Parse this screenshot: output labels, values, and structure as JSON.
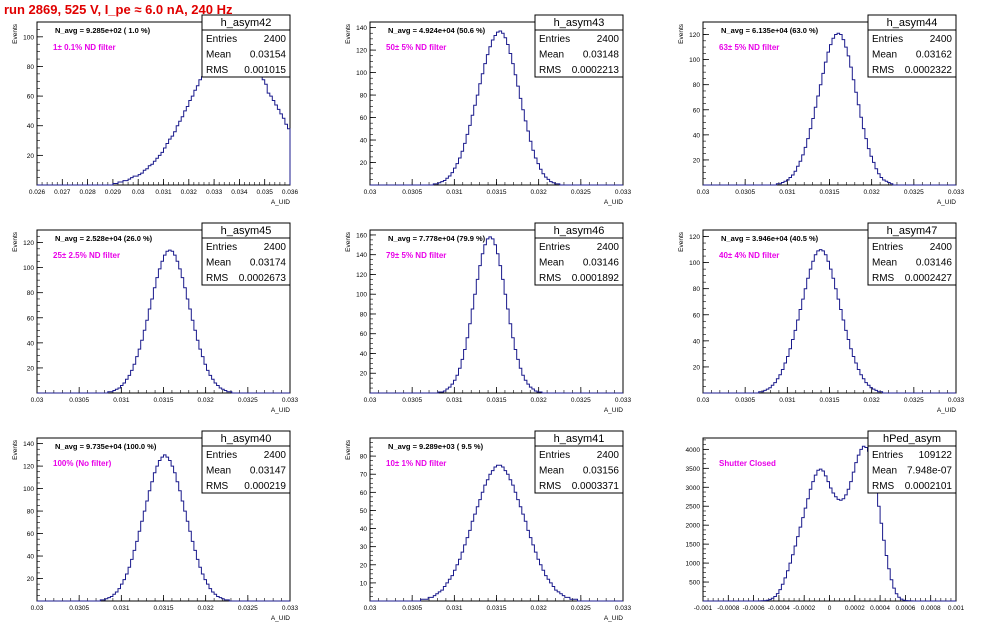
{
  "run_title": "run 2869,   525 V, I_pe ≈ 6.0 nA, 240 Hz",
  "colors": {
    "histogram": "#1a1a8c",
    "annotation": "#e800e8",
    "title": "#e00000",
    "axis": "#000000"
  },
  "chart_data": [
    {
      "type": "histogram",
      "name": "h_asym42",
      "navg": "N_avg = 9.285e+02 ( 1.0 %)",
      "filter": "1± 0.1% ND filter",
      "stats": {
        "Entries": "2400",
        "Mean": "0.03154",
        "RMS": "0.001015"
      },
      "ylabel": "Events",
      "xlabel": "A_UID",
      "xlim": [
        0.026,
        0.036
      ],
      "ylim": [
        0,
        110
      ],
      "xticks": [
        "0.026",
        "0.027",
        "0.028",
        "0.029",
        "0.03",
        "0.031",
        "0.032",
        "0.033",
        "0.034",
        "0.035",
        "0.036"
      ],
      "yticks": [
        "20",
        "40",
        "60",
        "80",
        "100"
      ],
      "x_start": 0.026,
      "bin_width": 0.0001,
      "counts": [
        0,
        0,
        0,
        0,
        0,
        0,
        0,
        0,
        0,
        0,
        0,
        0,
        0,
        0,
        0,
        0,
        0,
        0,
        0,
        0,
        0,
        0,
        0,
        0,
        0,
        0,
        0,
        0,
        0,
        0,
        1,
        1,
        2,
        2,
        3,
        3,
        4,
        5,
        6,
        6,
        7,
        8,
        10,
        11,
        13,
        14,
        16,
        18,
        20,
        22,
        25,
        28,
        31,
        33,
        36,
        40,
        43,
        46,
        50,
        53,
        57,
        60,
        64,
        67,
        71,
        73,
        79,
        82,
        88,
        92,
        95,
        96,
        100,
        99,
        100,
        103,
        96,
        99,
        97,
        92,
        95,
        93,
        88,
        92,
        87,
        81,
        78,
        75,
        73,
        71,
        68,
        62,
        60,
        57,
        54,
        51,
        48,
        45,
        41,
        38,
        35,
        32,
        29,
        27,
        24,
        21,
        20,
        18,
        16,
        14,
        12,
        10,
        9,
        8,
        7,
        5,
        5,
        4,
        3,
        3,
        2,
        2,
        1,
        1,
        1,
        1,
        0,
        0,
        0,
        0,
        0,
        0,
        0,
        0,
        0,
        0,
        0,
        0,
        0,
        0,
        0,
        0,
        0,
        0,
        0,
        0,
        0,
        0,
        0,
        0,
        0,
        0,
        0,
        0,
        0,
        0,
        0,
        0,
        0,
        0,
        0,
        0,
        0,
        0,
        0,
        0,
        0,
        0
      ]
    },
    {
      "type": "histogram",
      "name": "h_asym43",
      "navg": "N_avg = 4.924e+04 (50.6 %)",
      "filter": "50± 5% ND filter",
      "stats": {
        "Entries": "2400",
        "Mean": "0.03148",
        "RMS": "0.0002213"
      },
      "ylabel": "Events",
      "xlabel": "A_UID",
      "xlim": [
        0.03,
        0.033
      ],
      "ylim": [
        0,
        145
      ],
      "xticks": [
        "0.03",
        "0.0305",
        "0.031",
        "0.0315",
        "0.032",
        "0.0325",
        "0.033"
      ],
      "yticks": [
        "20",
        "40",
        "60",
        "80",
        "100",
        "120",
        "140"
      ],
      "x_start": 0.03,
      "bin_width": 3e-05,
      "counts": [
        0,
        0,
        0,
        0,
        0,
        0,
        0,
        0,
        0,
        0,
        0,
        0,
        0,
        0,
        0,
        0,
        0,
        0,
        0,
        0,
        0,
        0,
        0,
        0,
        0,
        1,
        1,
        2,
        3,
        4,
        6,
        8,
        11,
        15,
        19,
        24,
        30,
        37,
        45,
        53,
        62,
        71,
        80,
        90,
        99,
        108,
        116,
        123,
        129,
        133,
        136,
        137,
        135,
        131,
        125,
        117,
        108,
        98,
        88,
        77,
        67,
        57,
        48,
        39,
        31,
        24,
        19,
        14,
        10,
        7,
        5,
        3,
        2,
        1,
        1,
        0,
        0,
        0,
        0,
        0,
        0,
        0,
        0,
        0,
        0,
        0,
        0,
        0,
        0,
        0,
        0,
        0,
        0,
        0,
        0,
        0,
        0,
        0,
        0,
        0
      ]
    },
    {
      "type": "histogram",
      "name": "h_asym44",
      "navg": "N_avg = 6.135e+04 (63.0 %)",
      "filter": "63± 5% ND filter",
      "stats": {
        "Entries": "2400",
        "Mean": "0.03162",
        "RMS": "0.0002322"
      },
      "ylabel": "Events",
      "xlabel": "A_UID",
      "xlim": [
        0.03,
        0.033
      ],
      "ylim": [
        0,
        130
      ],
      "xticks": [
        "0.03",
        "0.0305",
        "0.031",
        "0.0315",
        "0.032",
        "0.0325",
        "0.033"
      ],
      "yticks": [
        "20",
        "40",
        "60",
        "80",
        "100",
        "120"
      ],
      "x_start": 0.03,
      "bin_width": 3e-05,
      "counts": [
        0,
        0,
        0,
        0,
        0,
        0,
        0,
        0,
        0,
        0,
        0,
        0,
        0,
        0,
        0,
        0,
        0,
        0,
        0,
        0,
        0,
        0,
        0,
        0,
        0,
        0,
        0,
        0,
        0,
        1,
        1,
        2,
        3,
        4,
        6,
        8,
        11,
        15,
        19,
        24,
        30,
        37,
        45,
        53,
        62,
        71,
        80,
        89,
        98,
        106,
        112,
        117,
        120,
        121,
        120,
        116,
        110,
        103,
        94,
        84,
        74,
        64,
        54,
        45,
        37,
        29,
        23,
        18,
        13,
        9,
        6,
        4,
        3,
        2,
        1,
        0,
        0,
        0,
        0,
        0,
        0,
        0,
        0,
        0,
        0,
        0,
        0,
        0,
        0,
        0,
        0,
        0,
        0,
        0,
        0,
        0,
        0,
        0,
        0,
        0
      ]
    },
    {
      "type": "histogram",
      "name": "h_asym45",
      "navg": "N_avg = 2.528e+04 (26.0 %)",
      "filter": "25± 2.5% ND filter",
      "stats": {
        "Entries": "2400",
        "Mean": "0.03174",
        "RMS": "0.0002673"
      },
      "ylabel": "Events",
      "xlabel": "A_UID",
      "xlim": [
        0.03,
        0.033
      ],
      "ylim": [
        0,
        130
      ],
      "xticks": [
        "0.03",
        "0.0305",
        "0.031",
        "0.0315",
        "0.032",
        "0.0325",
        "0.033"
      ],
      "yticks": [
        "20",
        "40",
        "60",
        "80",
        "100",
        "120"
      ],
      "x_start": 0.03,
      "bin_width": 3e-05,
      "counts": [
        0,
        0,
        0,
        0,
        0,
        0,
        0,
        0,
        0,
        0,
        0,
        0,
        0,
        0,
        0,
        0,
        0,
        0,
        0,
        0,
        0,
        0,
        0,
        0,
        0,
        0,
        0,
        0,
        1,
        1,
        2,
        3,
        4,
        6,
        8,
        11,
        14,
        18,
        23,
        29,
        35,
        42,
        50,
        58,
        67,
        75,
        84,
        92,
        99,
        105,
        110,
        113,
        114,
        113,
        110,
        105,
        99,
        92,
        84,
        75,
        67,
        58,
        50,
        42,
        35,
        29,
        23,
        18,
        14,
        11,
        8,
        6,
        4,
        3,
        2,
        1,
        1,
        0,
        0,
        0,
        0,
        0,
        0,
        0,
        0,
        0,
        0,
        0,
        0,
        0,
        0,
        0,
        0,
        0,
        0,
        0,
        0,
        0,
        0,
        0
      ]
    },
    {
      "type": "histogram",
      "name": "h_asym46",
      "navg": "N_avg = 7.778e+04 (79.9 %)",
      "filter": "79± 5% ND filter",
      "stats": {
        "Entries": "2400",
        "Mean": "0.03146",
        "RMS": "0.0001892"
      },
      "ylabel": "Events",
      "xlabel": "A_UID",
      "xlim": [
        0.03,
        0.033
      ],
      "ylim": [
        0,
        165
      ],
      "xticks": [
        "0.03",
        "0.0305",
        "0.031",
        "0.0315",
        "0.032",
        "0.0325",
        "0.033"
      ],
      "yticks": [
        "20",
        "40",
        "60",
        "80",
        "100",
        "120",
        "140",
        "160"
      ],
      "x_start": 0.03,
      "bin_width": 3e-05,
      "counts": [
        0,
        0,
        0,
        0,
        0,
        0,
        0,
        0,
        0,
        0,
        0,
        0,
        0,
        0,
        0,
        0,
        0,
        0,
        0,
        0,
        0,
        0,
        0,
        0,
        0,
        0,
        0,
        1,
        1,
        2,
        4,
        6,
        9,
        13,
        18,
        25,
        34,
        44,
        56,
        70,
        85,
        100,
        115,
        129,
        141,
        150,
        156,
        158,
        156,
        150,
        141,
        129,
        115,
        100,
        85,
        70,
        56,
        44,
        34,
        25,
        18,
        13,
        9,
        6,
        4,
        2,
        1,
        1,
        0,
        0,
        0,
        0,
        0,
        0,
        0,
        0,
        0,
        0,
        0,
        0,
        0,
        0,
        0,
        0,
        0,
        0,
        0,
        0,
        0,
        0,
        0,
        0,
        0,
        0,
        0,
        0,
        0,
        0,
        0,
        0
      ]
    },
    {
      "type": "histogram",
      "name": "h_asym47",
      "navg": "N_avg = 3.946e+04 (40.5 %)",
      "filter": "40± 4% ND filter",
      "stats": {
        "Entries": "2400",
        "Mean": "0.03146",
        "RMS": "0.0002427"
      },
      "ylabel": "Events",
      "xlabel": "A_UID",
      "xlim": [
        0.03,
        0.033
      ],
      "ylim": [
        0,
        125
      ],
      "xticks": [
        "0.03",
        "0.0305",
        "0.031",
        "0.0315",
        "0.032",
        "0.0325",
        "0.033"
      ],
      "yticks": [
        "20",
        "40",
        "60",
        "80",
        "100",
        "120"
      ],
      "x_start": 0.03,
      "bin_width": 3e-05,
      "counts": [
        0,
        0,
        0,
        0,
        0,
        0,
        0,
        0,
        0,
        0,
        0,
        0,
        0,
        0,
        0,
        0,
        0,
        0,
        0,
        0,
        0,
        0,
        1,
        1,
        2,
        3,
        4,
        6,
        8,
        11,
        14,
        18,
        23,
        28,
        34,
        41,
        48,
        56,
        64,
        72,
        80,
        88,
        95,
        101,
        106,
        109,
        110,
        109,
        106,
        101,
        95,
        88,
        80,
        72,
        64,
        56,
        48,
        41,
        34,
        28,
        23,
        18,
        14,
        11,
        8,
        6,
        4,
        3,
        2,
        1,
        1,
        0,
        0,
        0,
        0,
        0,
        0,
        0,
        0,
        0,
        0,
        0,
        0,
        0,
        0,
        0,
        0,
        0,
        0,
        0,
        0,
        0,
        0,
        0,
        0,
        0,
        0,
        0,
        0,
        0
      ]
    },
    {
      "type": "histogram",
      "name": "h_asym40",
      "navg": "N_avg = 9.735e+04 (100.0 %)",
      "filter": "100% (No filter)",
      "stats": {
        "Entries": "2400",
        "Mean": "0.03147",
        "RMS": "0.000219"
      },
      "ylabel": "Events",
      "xlabel": "A_UID",
      "xlim": [
        0.03,
        0.033
      ],
      "ylim": [
        0,
        145
      ],
      "xticks": [
        "0.03",
        "0.0305",
        "0.031",
        "0.0315",
        "0.032",
        "0.0325",
        "0.033"
      ],
      "yticks": [
        "20",
        "40",
        "60",
        "80",
        "100",
        "120",
        "140"
      ],
      "x_start": 0.03,
      "bin_width": 3e-05,
      "counts": [
        0,
        0,
        0,
        0,
        0,
        0,
        0,
        0,
        0,
        0,
        0,
        0,
        0,
        0,
        0,
        0,
        0,
        0,
        0,
        0,
        0,
        0,
        0,
        0,
        0,
        1,
        1,
        2,
        3,
        4,
        6,
        8,
        11,
        15,
        19,
        24,
        30,
        37,
        45,
        53,
        62,
        71,
        80,
        89,
        98,
        106,
        114,
        120,
        125,
        128,
        130,
        128,
        125,
        120,
        114,
        106,
        98,
        89,
        80,
        71,
        62,
        53,
        45,
        37,
        30,
        24,
        19,
        15,
        11,
        8,
        6,
        4,
        3,
        2,
        1,
        1,
        0,
        0,
        0,
        0,
        0,
        0,
        0,
        0,
        0,
        0,
        0,
        0,
        0,
        0,
        0,
        0,
        0,
        0,
        0,
        0,
        0,
        0,
        0,
        0
      ]
    },
    {
      "type": "histogram",
      "name": "h_asym41",
      "navg": "N_avg = 9.289e+03 ( 9.5 %)",
      "filter": "10± 1% ND filter",
      "stats": {
        "Entries": "2400",
        "Mean": "0.03156",
        "RMS": "0.0003371"
      },
      "ylabel": "Events",
      "xlabel": "A_UID",
      "xlim": [
        0.03,
        0.033
      ],
      "ylim": [
        0,
        90
      ],
      "xticks": [
        "0.03",
        "0.0305",
        "0.031",
        "0.0315",
        "0.032",
        "0.0325",
        "0.033"
      ],
      "yticks": [
        "10",
        "20",
        "30",
        "40",
        "50",
        "60",
        "70",
        "80"
      ],
      "x_start": 0.03,
      "bin_width": 3e-05,
      "counts": [
        0,
        0,
        0,
        0,
        0,
        0,
        0,
        0,
        0,
        0,
        0,
        0,
        0,
        0,
        0,
        0,
        0,
        0,
        0,
        0,
        1,
        1,
        1,
        2,
        2,
        3,
        4,
        5,
        6,
        8,
        10,
        12,
        14,
        17,
        20,
        23,
        27,
        31,
        35,
        39,
        44,
        48,
        52,
        56,
        60,
        64,
        67,
        70,
        72,
        74,
        75,
        75,
        74,
        72,
        70,
        67,
        64,
        60,
        56,
        52,
        48,
        44,
        39,
        35,
        31,
        27,
        23,
        20,
        17,
        14,
        12,
        10,
        8,
        6,
        5,
        4,
        3,
        2,
        2,
        1,
        1,
        1,
        0,
        0,
        0,
        0,
        0,
        0,
        0,
        0,
        0,
        0,
        0,
        0,
        0,
        0,
        0,
        0,
        0,
        0
      ]
    },
    {
      "type": "histogram",
      "name": "hPed_asym",
      "navg": "",
      "filter": "Shutter Closed",
      "stats": {
        "Entries": "109122",
        "Mean": "7.948e-07",
        "RMS": "0.0002101"
      },
      "ylabel": "",
      "xlabel": "",
      "xlim": [
        -0.001,
        0.001
      ],
      "ylim": [
        0,
        4300
      ],
      "xticks": [
        "-0.001",
        "-0.0008",
        "-0.0006",
        "-0.0004",
        "-0.0002",
        "0",
        "0.0002",
        "0.0004",
        "0.0006",
        "0.0008",
        "0.001"
      ],
      "yticks": [
        "500",
        "1000",
        "1500",
        "2000",
        "2500",
        "3000",
        "3500",
        "4000"
      ],
      "x_start": -0.001,
      "bin_width": 2e-05,
      "counts": [
        0,
        0,
        0,
        0,
        0,
        0,
        0,
        0,
        0,
        0,
        0,
        0,
        0,
        0,
        0,
        0,
        0,
        0,
        0,
        0,
        0,
        1,
        2,
        5,
        10,
        20,
        38,
        70,
        120,
        195,
        300,
        440,
        610,
        800,
        1000,
        1220,
        1450,
        1700,
        1950,
        2200,
        2450,
        2700,
        2950,
        3150,
        3320,
        3450,
        3480,
        3430,
        3300,
        3150,
        2980,
        2850,
        2750,
        2680,
        2660,
        2700,
        2800,
        2950,
        3150,
        3400,
        3650,
        3850,
        4000,
        4080,
        4050,
        3950,
        3700,
        3350,
        2950,
        2500,
        2050,
        1600,
        1200,
        850,
        560,
        340,
        190,
        100,
        50,
        22,
        10,
        4,
        2,
        1,
        0,
        0,
        0,
        0,
        0,
        0,
        0,
        0,
        0,
        0,
        0,
        0,
        0,
        0,
        0,
        0
      ]
    }
  ]
}
